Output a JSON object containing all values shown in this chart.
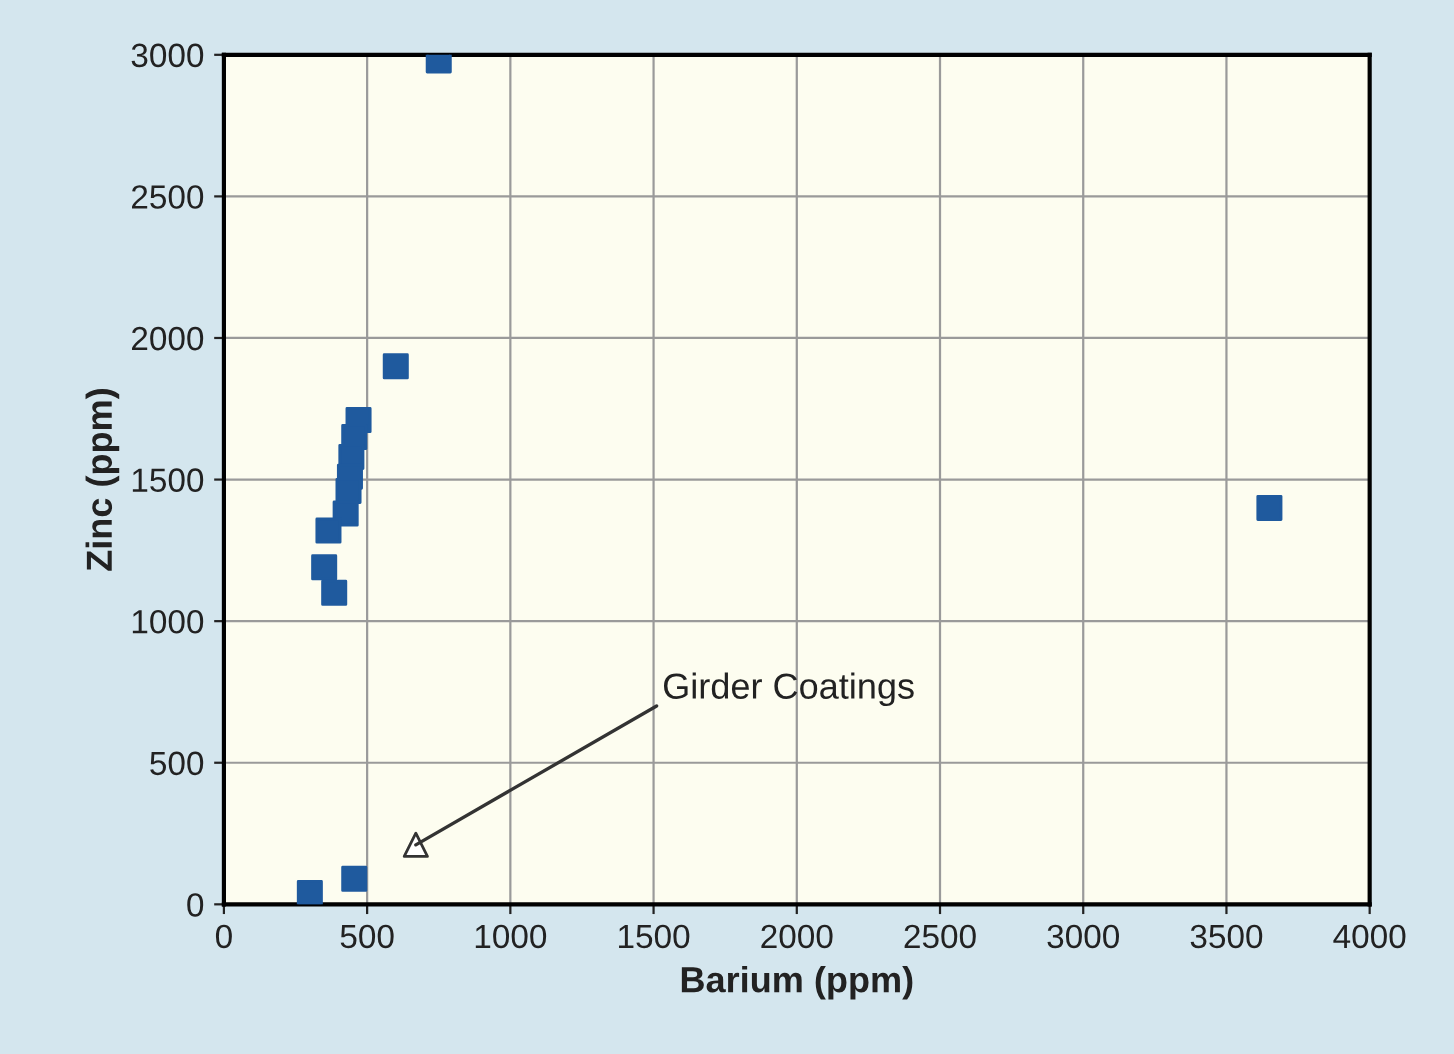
{
  "chart_data": {
    "type": "scatter",
    "xlabel": "Barium (ppm)",
    "ylabel": "Zinc (ppm)",
    "xlim": [
      0,
      4000
    ],
    "xticks": [
      0,
      500,
      1000,
      1500,
      2000,
      2500,
      3000,
      3500,
      4000
    ],
    "ylim": [
      0,
      3000
    ],
    "yticks": [
      0,
      500,
      1000,
      1500,
      2000,
      2500,
      3000
    ],
    "grid": true,
    "series": [
      {
        "color": "#1f5a9e",
        "marker": "square",
        "x": [
          750,
          600,
          470,
          455,
          445,
          440,
          435,
          425,
          365,
          350,
          385,
          3650,
          300,
          455
        ],
        "values": [
          2980,
          1900,
          1710,
          1650,
          1580,
          1510,
          1460,
          1380,
          1320,
          1190,
          1100,
          1400,
          40,
          90
        ]
      },
      {
        "color": "#ffffff",
        "marker": "triangle",
        "x": [
          670
        ],
        "values": [
          210
        ]
      }
    ],
    "annotations": [
      {
        "text": "Girder Coatings",
        "x": 670,
        "y": 210
      }
    ]
  }
}
